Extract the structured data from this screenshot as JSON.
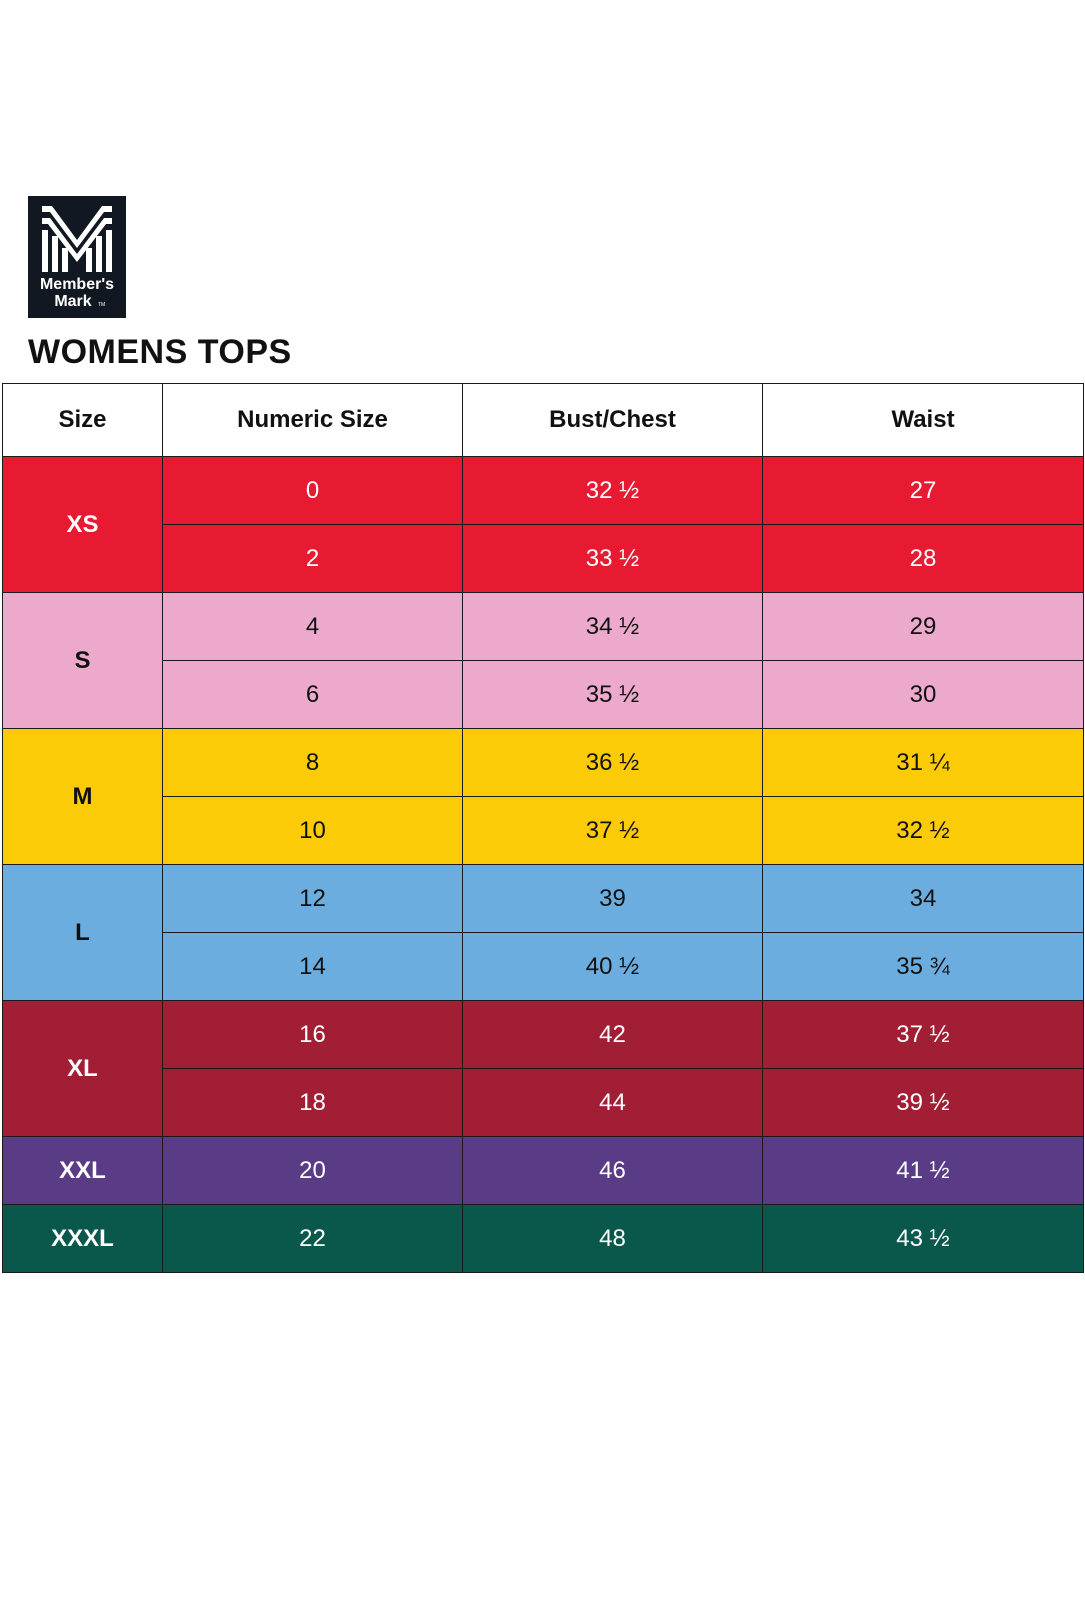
{
  "brand": {
    "line1": "Member's",
    "line2": "Mark",
    "tm": "TM",
    "logo_bg": "#111821"
  },
  "title": "WOMENS TOPS",
  "table": {
    "headers": [
      "Size",
      "Numeric Size",
      "Bust/Chest",
      "Waist"
    ],
    "groups": [
      {
        "size": "XS",
        "bg": "#e81a31",
        "fg": "#ffffff",
        "rows": [
          {
            "numeric": "0",
            "bust": "32 ½",
            "waist": "27"
          },
          {
            "numeric": "2",
            "bust": "33 ½",
            "waist": "28"
          }
        ]
      },
      {
        "size": "S",
        "bg": "#eca9cb",
        "fg": "#111111",
        "rows": [
          {
            "numeric": "4",
            "bust": "34 ½",
            "waist": "29"
          },
          {
            "numeric": "6",
            "bust": "35 ½",
            "waist": "30"
          }
        ]
      },
      {
        "size": "M",
        "bg": "#fccb07",
        "fg": "#111111",
        "rows": [
          {
            "numeric": "8",
            "bust": "36 ½",
            "waist": "31 ¼"
          },
          {
            "numeric": "10",
            "bust": "37 ½",
            "waist": "32 ½"
          }
        ]
      },
      {
        "size": "L",
        "bg": "#6badde",
        "fg": "#111111",
        "rows": [
          {
            "numeric": "12",
            "bust": "39",
            "waist": "34"
          },
          {
            "numeric": "14",
            "bust": "40 ½",
            "waist": "35 ¾"
          }
        ]
      },
      {
        "size": "XL",
        "bg": "#a21e35",
        "fg": "#ffffff",
        "rows": [
          {
            "numeric": "16",
            "bust": "42",
            "waist": "37 ½"
          },
          {
            "numeric": "18",
            "bust": "44",
            "waist": "39 ½"
          }
        ]
      },
      {
        "size": "XXL",
        "bg": "#5a3b86",
        "fg": "#ffffff",
        "rows": [
          {
            "numeric": "20",
            "bust": "46",
            "waist": "41 ½"
          }
        ]
      },
      {
        "size": "XXXL",
        "bg": "#0a574b",
        "fg": "#ffffff",
        "rows": [
          {
            "numeric": "22",
            "bust": "48",
            "waist": "43 ½"
          }
        ]
      }
    ]
  }
}
